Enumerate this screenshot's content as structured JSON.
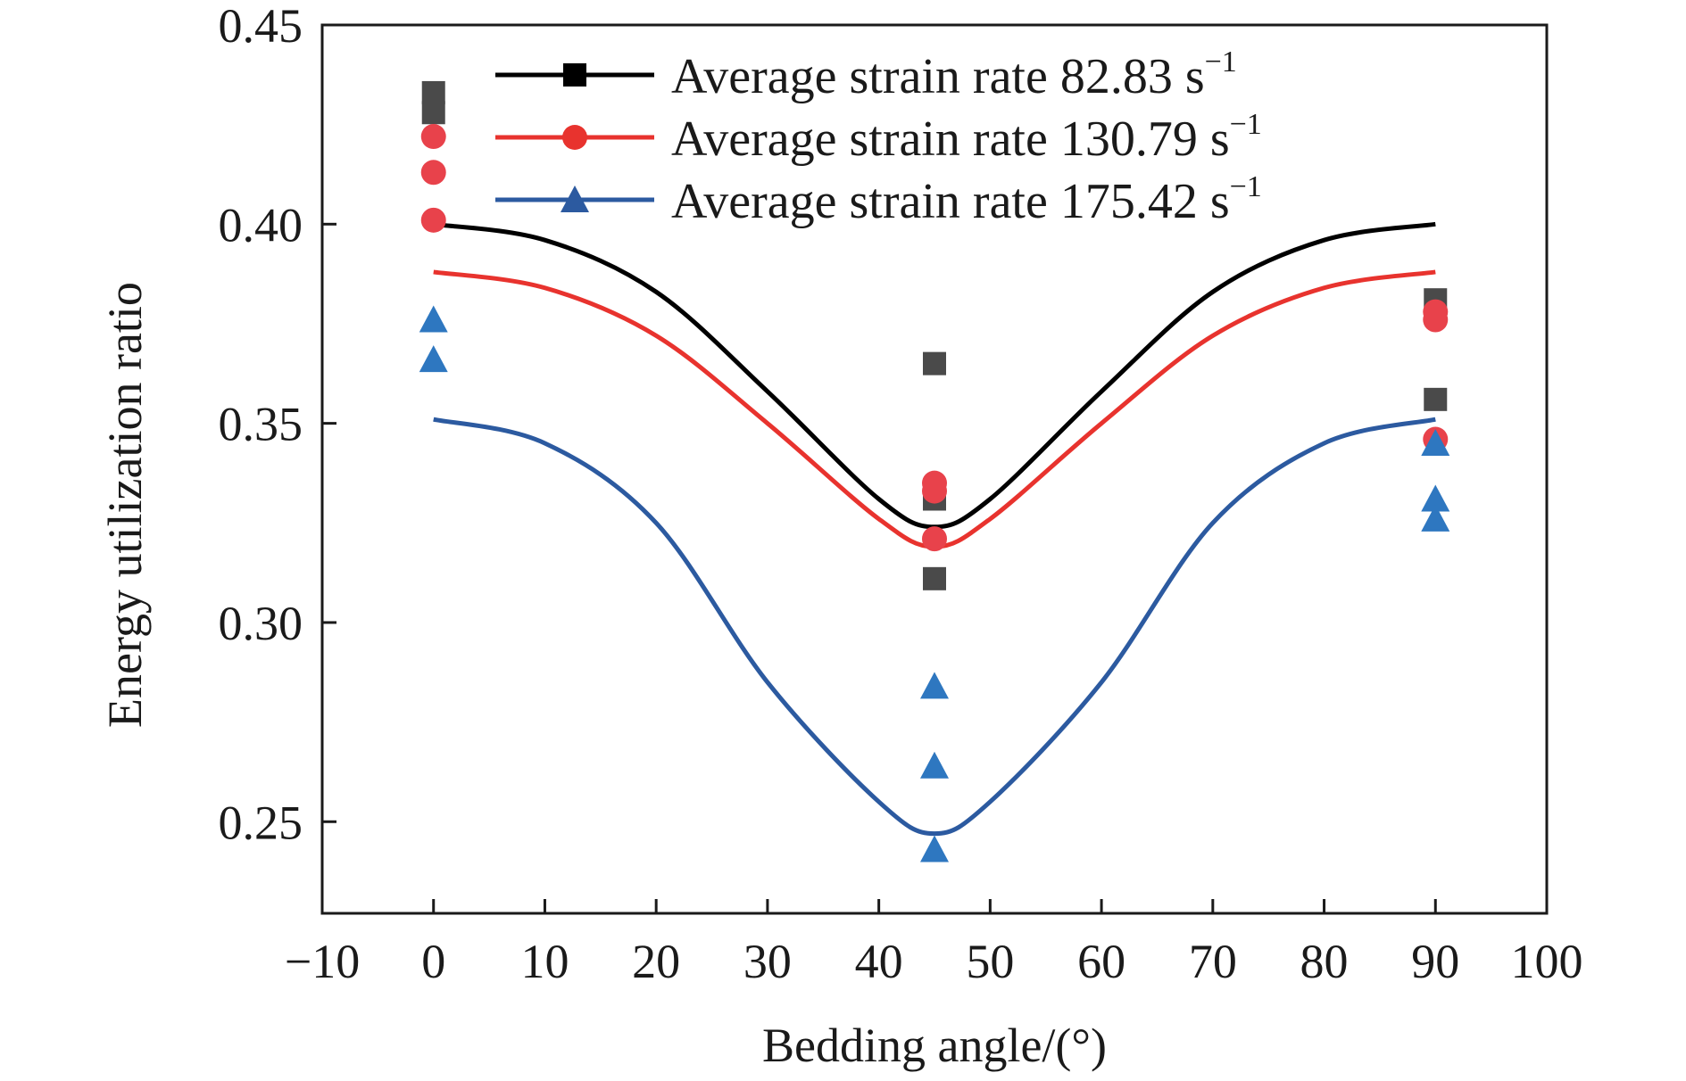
{
  "chart_data": {
    "type": "scatter",
    "title": "",
    "xlabel": "Bedding angle/(°)",
    "ylabel": "Energy utilization ratio",
    "xlim": [
      -10,
      100
    ],
    "ylim": [
      0.227,
      0.45
    ],
    "x_ticks": [
      -10,
      0,
      10,
      20,
      30,
      40,
      50,
      60,
      70,
      80,
      90,
      100
    ],
    "x_tick_labels": [
      "−10",
      "0",
      "10",
      "20",
      "30",
      "40",
      "50",
      "60",
      "70",
      "80",
      "90",
      "100"
    ],
    "y_ticks": [
      0.25,
      0.3,
      0.35,
      0.4,
      0.45
    ],
    "y_tick_labels": [
      "0.25",
      "0.30",
      "0.35",
      "0.40",
      "0.45"
    ],
    "grid": false,
    "legend_position": "top-center",
    "series": [
      {
        "name": "Average strain rate 82.83 s",
        "name_sup": "−1",
        "marker": "square",
        "color": "#4a4a4a",
        "line_color": "#000000",
        "points": [
          {
            "x": 0,
            "y": 0.433
          },
          {
            "x": 0,
            "y": 0.428
          },
          {
            "x": 45,
            "y": 0.365
          },
          {
            "x": 45,
            "y": 0.331
          },
          {
            "x": 45,
            "y": 0.311
          },
          {
            "x": 90,
            "y": 0.381
          },
          {
            "x": 90,
            "y": 0.356
          }
        ],
        "fit": {
          "x": [
            0,
            10,
            20,
            30,
            40,
            45,
            50,
            60,
            70,
            80,
            90
          ],
          "y": [
            0.4,
            0.396,
            0.383,
            0.358,
            0.331,
            0.324,
            0.331,
            0.358,
            0.383,
            0.396,
            0.4
          ]
        }
      },
      {
        "name": "Average strain rate 130.79 s",
        "name_sup": "−1",
        "marker": "circle",
        "color": "#e8424b",
        "line_color": "#e8332e",
        "points": [
          {
            "x": 0,
            "y": 0.422
          },
          {
            "x": 0,
            "y": 0.413
          },
          {
            "x": 0,
            "y": 0.401
          },
          {
            "x": 45,
            "y": 0.335
          },
          {
            "x": 45,
            "y": 0.333
          },
          {
            "x": 45,
            "y": 0.321
          },
          {
            "x": 90,
            "y": 0.378
          },
          {
            "x": 90,
            "y": 0.376
          },
          {
            "x": 90,
            "y": 0.346
          }
        ],
        "fit": {
          "x": [
            0,
            10,
            20,
            30,
            40,
            45,
            50,
            60,
            70,
            80,
            90
          ],
          "y": [
            0.388,
            0.384,
            0.372,
            0.35,
            0.326,
            0.319,
            0.326,
            0.35,
            0.372,
            0.384,
            0.388
          ]
        }
      },
      {
        "name": "Average strain rate 175.42 s",
        "name_sup": "−1",
        "marker": "triangle",
        "color": "#2e77c0",
        "line_color": "#2c5aa0",
        "points": [
          {
            "x": 0,
            "y": 0.376
          },
          {
            "x": 0,
            "y": 0.366
          },
          {
            "x": 45,
            "y": 0.284
          },
          {
            "x": 45,
            "y": 0.264
          },
          {
            "x": 45,
            "y": 0.243
          },
          {
            "x": 90,
            "y": 0.345
          },
          {
            "x": 90,
            "y": 0.331
          },
          {
            "x": 90,
            "y": 0.326
          }
        ],
        "fit": {
          "x": [
            0,
            10,
            20,
            30,
            40,
            45,
            50,
            60,
            70,
            80,
            90
          ],
          "y": [
            0.351,
            0.345,
            0.325,
            0.285,
            0.255,
            0.247,
            0.255,
            0.285,
            0.325,
            0.345,
            0.351
          ]
        }
      }
    ]
  }
}
